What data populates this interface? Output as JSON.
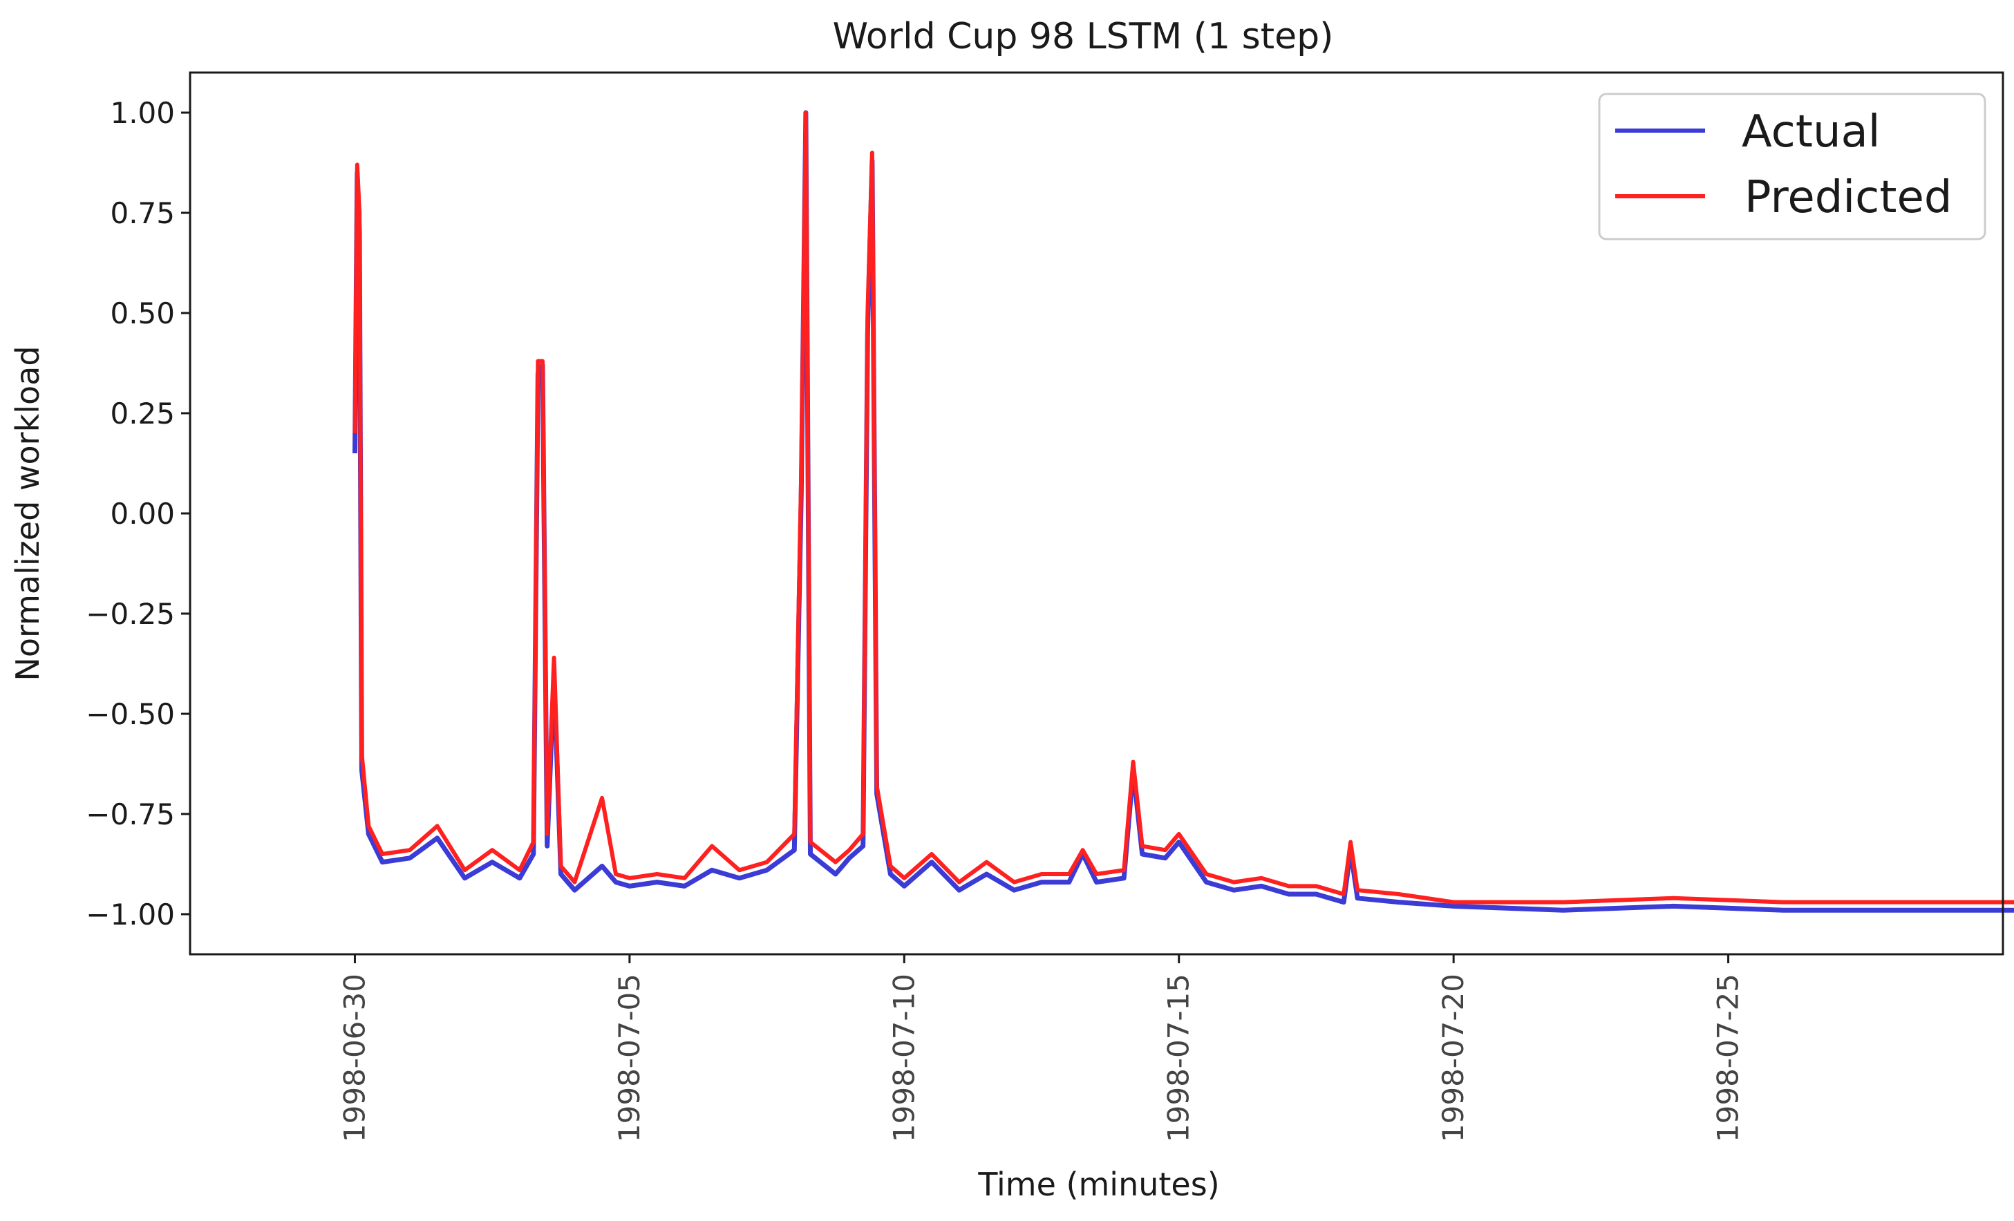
{
  "chart_data": {
    "type": "line",
    "title": "World Cup 98 LSTM (1 step)",
    "xlabel": "Time (minutes)",
    "ylabel": "Normalized workload",
    "x_range": [
      "1998-06-27",
      "1998-07-30"
    ],
    "ylim": [
      -1.1,
      1.1
    ],
    "x_ticks": [
      "1998-06-30",
      "1998-07-05",
      "1998-07-10",
      "1998-07-15",
      "1998-07-20",
      "1998-07-25"
    ],
    "y_ticks": [
      1.0,
      0.75,
      0.5,
      0.25,
      0.0,
      -0.25,
      -0.5,
      -0.75,
      -1.0
    ],
    "y_tick_labels": [
      "1.00",
      "0.75",
      "0.50",
      "0.25",
      "0.00",
      "−0.25",
      "−0.50",
      "−0.75",
      "−1.00"
    ],
    "legend": {
      "position": "top-right",
      "frame": true
    },
    "grid": false,
    "series": [
      {
        "name": "Actual",
        "color": "#3b3bd6",
        "points": [
          [
            "1998-06-30 00:00",
            0.15
          ],
          [
            "1998-06-30 01:00",
            0.85
          ],
          [
            "1998-06-30 02:00",
            0.7
          ],
          [
            "1998-06-30 03:00",
            -0.64
          ],
          [
            "1998-06-30 06:00",
            -0.8
          ],
          [
            "1998-06-30 12:00",
            -0.87
          ],
          [
            "1998-07-01 00:00",
            -0.86
          ],
          [
            "1998-07-01 12:00",
            -0.81
          ],
          [
            "1998-07-02 00:00",
            -0.91
          ],
          [
            "1998-07-02 12:00",
            -0.87
          ],
          [
            "1998-07-03 00:00",
            -0.91
          ],
          [
            "1998-07-03 06:00",
            -0.85
          ],
          [
            "1998-07-03 08:00",
            0.35
          ],
          [
            "1998-07-03 10:00",
            0.37
          ],
          [
            "1998-07-03 12:00",
            -0.83
          ],
          [
            "1998-07-03 15:00",
            -0.4
          ],
          [
            "1998-07-03 18:00",
            -0.9
          ],
          [
            "1998-07-04 00:00",
            -0.94
          ],
          [
            "1998-07-04 12:00",
            -0.88
          ],
          [
            "1998-07-04 18:00",
            -0.92
          ],
          [
            "1998-07-05 00:00",
            -0.93
          ],
          [
            "1998-07-05 12:00",
            -0.92
          ],
          [
            "1998-07-06 00:00",
            -0.93
          ],
          [
            "1998-07-06 12:00",
            -0.89
          ],
          [
            "1998-07-07 00:00",
            -0.91
          ],
          [
            "1998-07-07 12:00",
            -0.89
          ],
          [
            "1998-07-08 00:00",
            -0.84
          ],
          [
            "1998-07-08 03:00",
            0.05
          ],
          [
            "1998-07-08 05:00",
            1.0
          ],
          [
            "1998-07-08 07:00",
            -0.85
          ],
          [
            "1998-07-08 18:00",
            -0.9
          ],
          [
            "1998-07-09 00:00",
            -0.86
          ],
          [
            "1998-07-09 06:00",
            -0.83
          ],
          [
            "1998-07-09 08:00",
            0.45
          ],
          [
            "1998-07-09 10:00",
            0.88
          ],
          [
            "1998-07-09 12:00",
            -0.7
          ],
          [
            "1998-07-09 18:00",
            -0.9
          ],
          [
            "1998-07-10 00:00",
            -0.93
          ],
          [
            "1998-07-10 12:00",
            -0.87
          ],
          [
            "1998-07-11 00:00",
            -0.94
          ],
          [
            "1998-07-11 12:00",
            -0.9
          ],
          [
            "1998-07-12 00:00",
            -0.94
          ],
          [
            "1998-07-12 12:00",
            -0.92
          ],
          [
            "1998-07-13 00:00",
            -0.92
          ],
          [
            "1998-07-13 06:00",
            -0.85
          ],
          [
            "1998-07-13 12:00",
            -0.92
          ],
          [
            "1998-07-14 00:00",
            -0.91
          ],
          [
            "1998-07-14 04:00",
            -0.64
          ],
          [
            "1998-07-14 08:00",
            -0.85
          ],
          [
            "1998-07-14 18:00",
            -0.86
          ],
          [
            "1998-07-15 00:00",
            -0.82
          ],
          [
            "1998-07-15 12:00",
            -0.92
          ],
          [
            "1998-07-16 00:00",
            -0.94
          ],
          [
            "1998-07-16 12:00",
            -0.93
          ],
          [
            "1998-07-17 00:00",
            -0.95
          ],
          [
            "1998-07-17 12:00",
            -0.95
          ],
          [
            "1998-07-18 00:00",
            -0.97
          ],
          [
            "1998-07-18 03:00",
            -0.84
          ],
          [
            "1998-07-18 06:00",
            -0.96
          ],
          [
            "1998-07-19 00:00",
            -0.97
          ],
          [
            "1998-07-20 00:00",
            -0.98
          ],
          [
            "1998-07-22 00:00",
            -0.99
          ],
          [
            "1998-07-24 00:00",
            -0.98
          ],
          [
            "1998-07-26 00:00",
            -0.99
          ],
          [
            "1998-07-28 00:00",
            -0.99
          ],
          [
            "1998-07-30 06:00",
            -0.99
          ]
        ]
      },
      {
        "name": "Predicted",
        "color": "#ff2020",
        "points": [
          [
            "1998-06-30 00:00",
            0.2
          ],
          [
            "1998-06-30 01:00",
            0.87
          ],
          [
            "1998-06-30 02:00",
            0.75
          ],
          [
            "1998-06-30 03:00",
            -0.6
          ],
          [
            "1998-06-30 06:00",
            -0.78
          ],
          [
            "1998-06-30 12:00",
            -0.85
          ],
          [
            "1998-07-01 00:00",
            -0.84
          ],
          [
            "1998-07-01 12:00",
            -0.78
          ],
          [
            "1998-07-02 00:00",
            -0.89
          ],
          [
            "1998-07-02 12:00",
            -0.84
          ],
          [
            "1998-07-03 00:00",
            -0.89
          ],
          [
            "1998-07-03 06:00",
            -0.82
          ],
          [
            "1998-07-03 08:00",
            0.38
          ],
          [
            "1998-07-03 10:00",
            0.38
          ],
          [
            "1998-07-03 12:00",
            -0.8
          ],
          [
            "1998-07-03 15:00",
            -0.36
          ],
          [
            "1998-07-03 18:00",
            -0.88
          ],
          [
            "1998-07-04 00:00",
            -0.92
          ],
          [
            "1998-07-04 12:00",
            -0.71
          ],
          [
            "1998-07-04 18:00",
            -0.9
          ],
          [
            "1998-07-05 00:00",
            -0.91
          ],
          [
            "1998-07-05 12:00",
            -0.9
          ],
          [
            "1998-07-06 00:00",
            -0.91
          ],
          [
            "1998-07-06 12:00",
            -0.83
          ],
          [
            "1998-07-07 00:00",
            -0.89
          ],
          [
            "1998-07-07 12:00",
            -0.87
          ],
          [
            "1998-07-08 00:00",
            -0.8
          ],
          [
            "1998-07-08 03:00",
            0.1
          ],
          [
            "1998-07-08 05:00",
            1.0
          ],
          [
            "1998-07-08 07:00",
            -0.82
          ],
          [
            "1998-07-08 18:00",
            -0.87
          ],
          [
            "1998-07-09 00:00",
            -0.84
          ],
          [
            "1998-07-09 06:00",
            -0.8
          ],
          [
            "1998-07-09 08:00",
            0.5
          ],
          [
            "1998-07-09 10:00",
            0.9
          ],
          [
            "1998-07-09 12:00",
            -0.68
          ],
          [
            "1998-07-09 18:00",
            -0.88
          ],
          [
            "1998-07-10 00:00",
            -0.91
          ],
          [
            "1998-07-10 12:00",
            -0.85
          ],
          [
            "1998-07-11 00:00",
            -0.92
          ],
          [
            "1998-07-11 12:00",
            -0.87
          ],
          [
            "1998-07-12 00:00",
            -0.92
          ],
          [
            "1998-07-12 12:00",
            -0.9
          ],
          [
            "1998-07-13 00:00",
            -0.9
          ],
          [
            "1998-07-13 06:00",
            -0.84
          ],
          [
            "1998-07-13 12:00",
            -0.9
          ],
          [
            "1998-07-14 00:00",
            -0.89
          ],
          [
            "1998-07-14 04:00",
            -0.62
          ],
          [
            "1998-07-14 08:00",
            -0.83
          ],
          [
            "1998-07-14 18:00",
            -0.84
          ],
          [
            "1998-07-15 00:00",
            -0.8
          ],
          [
            "1998-07-15 12:00",
            -0.9
          ],
          [
            "1998-07-16 00:00",
            -0.92
          ],
          [
            "1998-07-16 12:00",
            -0.91
          ],
          [
            "1998-07-17 00:00",
            -0.93
          ],
          [
            "1998-07-17 12:00",
            -0.93
          ],
          [
            "1998-07-18 00:00",
            -0.95
          ],
          [
            "1998-07-18 03:00",
            -0.82
          ],
          [
            "1998-07-18 06:00",
            -0.94
          ],
          [
            "1998-07-19 00:00",
            -0.95
          ],
          [
            "1998-07-20 00:00",
            -0.97
          ],
          [
            "1998-07-22 00:00",
            -0.97
          ],
          [
            "1998-07-24 00:00",
            -0.96
          ],
          [
            "1998-07-26 00:00",
            -0.97
          ],
          [
            "1998-07-28 00:00",
            -0.97
          ],
          [
            "1998-07-30 06:00",
            -0.97
          ]
        ]
      }
    ]
  }
}
